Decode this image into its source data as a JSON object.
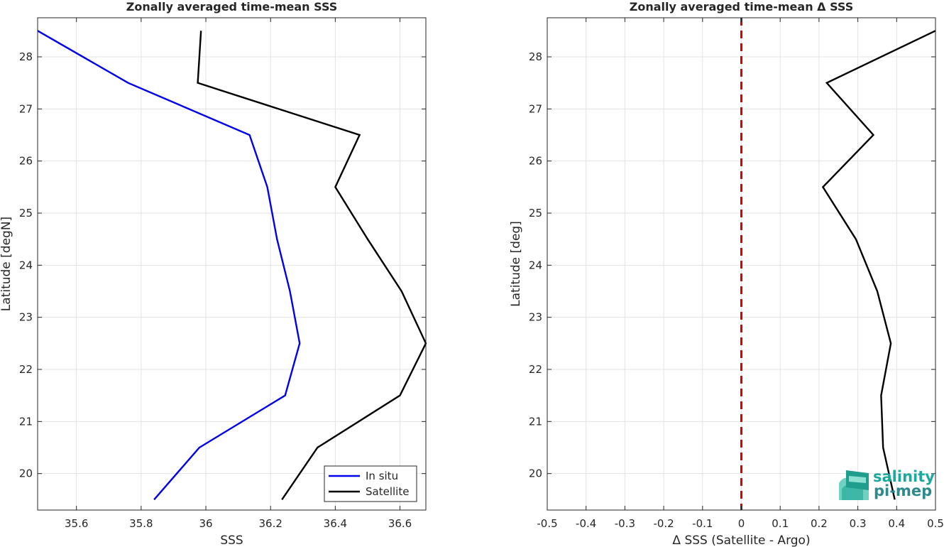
{
  "chart_data": [
    {
      "type": "line",
      "title": "Zonally averaged time-mean SSS",
      "xlabel": "SSS",
      "ylabel": "Latitude [degN]",
      "xlim": [
        35.48,
        36.68
      ],
      "ylim": [
        19.3,
        28.75
      ],
      "xticks": [
        35.6,
        35.8,
        36.0,
        36.2,
        36.4,
        36.6
      ],
      "xtick_labels": [
        "35.6",
        "35.8",
        "36",
        "36.2",
        "36.4",
        "36.6"
      ],
      "yticks": [
        20,
        21,
        22,
        23,
        24,
        25,
        26,
        27,
        28
      ],
      "ytick_labels": [
        "20",
        "21",
        "22",
        "23",
        "24",
        "25",
        "26",
        "27",
        "28"
      ],
      "grid": true,
      "legend": "bottom-right",
      "series": [
        {
          "name": "In situ",
          "color": "#0000ee",
          "x": [
            35.84,
            35.98,
            36.245,
            36.29,
            36.26,
            36.22,
            36.19,
            36.135,
            35.76,
            35.48
          ],
          "y": [
            19.5,
            20.5,
            21.5,
            22.5,
            23.5,
            24.5,
            25.5,
            26.5,
            27.5,
            28.5
          ]
        },
        {
          "name": "Satellite",
          "color": "#000000",
          "x": [
            36.235,
            36.345,
            36.6,
            36.68,
            36.605,
            36.5,
            36.4,
            36.475,
            35.975,
            35.985
          ],
          "y": [
            19.5,
            20.5,
            21.5,
            22.5,
            23.5,
            24.5,
            25.5,
            26.5,
            27.5,
            28.5
          ]
        }
      ]
    },
    {
      "type": "line",
      "title": "Zonally averaged time-mean Δ SSS",
      "xlabel": "Δ SSS (Satellite - Argo)",
      "ylabel": "Latitude [deg]",
      "xlim": [
        -0.5,
        0.5
      ],
      "ylim": [
        19.3,
        28.75
      ],
      "xticks": [
        -0.5,
        -0.4,
        -0.3,
        -0.2,
        -0.1,
        0,
        0.1,
        0.2,
        0.3,
        0.4,
        0.5
      ],
      "xtick_labels": [
        "-0.5",
        "-0.4",
        "-0.3",
        "-0.2",
        "-0.1",
        "0",
        "0.1",
        "0.2",
        "0.3",
        "0.4",
        "0.5"
      ],
      "yticks": [
        20,
        21,
        22,
        23,
        24,
        25,
        26,
        27,
        28
      ],
      "ytick_labels": [
        "20",
        "21",
        "22",
        "23",
        "24",
        "25",
        "26",
        "27",
        "28"
      ],
      "grid": true,
      "reference_line": {
        "x": 0,
        "color": "#dd0000",
        "style": "dashed"
      },
      "series": [
        {
          "color": "#000000",
          "x": [
            0.395,
            0.365,
            0.36,
            0.385,
            0.35,
            0.295,
            0.21,
            0.34,
            0.22,
            0.5
          ],
          "y": [
            19.5,
            20.5,
            21.5,
            22.5,
            23.5,
            24.5,
            25.5,
            26.5,
            27.5,
            28.5
          ]
        }
      ]
    }
  ],
  "logo": {
    "line1": "salinity",
    "line2": "pi-mep"
  }
}
